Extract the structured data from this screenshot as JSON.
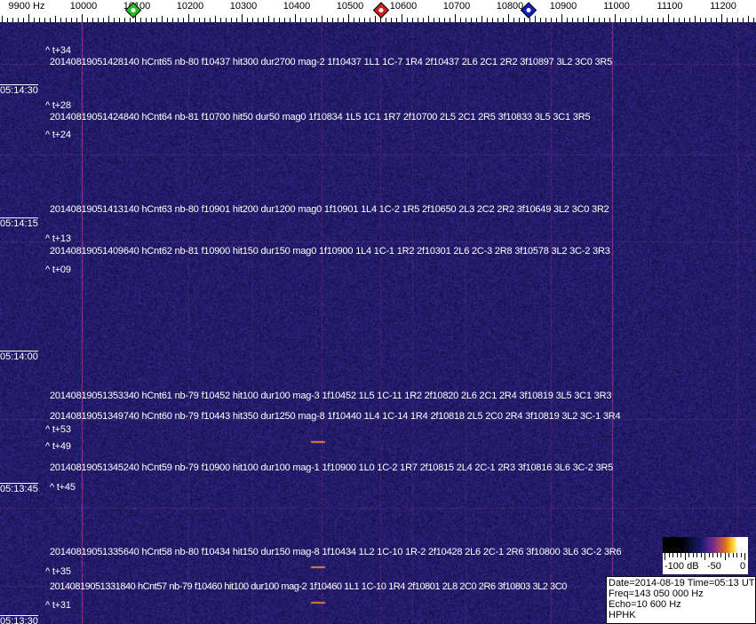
{
  "axis": {
    "unit_label": "9900 Hz",
    "labels": [
      "10000",
      "10100",
      "10200",
      "10300",
      "10400",
      "10500",
      "10600",
      "10700",
      "10800",
      "10900",
      "11000",
      "11100",
      "11200"
    ],
    "markers": [
      {
        "name": "green-marker",
        "freq_hz": 10097,
        "color": "#22c020"
      },
      {
        "name": "red-marker",
        "freq_hz": 10561,
        "color": "#d02020"
      },
      {
        "name": "blue-marker",
        "freq_hz": 10838,
        "color": "#1020c0"
      }
    ]
  },
  "colors": {
    "background": "#1c1968",
    "strong_line": "#b03080",
    "text": "#ffffff"
  },
  "times": [
    "05:14:30",
    "05:14:15",
    "05:14:00",
    "05:13:45",
    "05:13:30"
  ],
  "offsets": [
    "^ t+34",
    "^ t+28",
    "^ t+24",
    "^ t+13",
    "^ t+09",
    "^ t+53",
    "^ t+49",
    "^ t+45",
    "^ t+35",
    "^ t+31"
  ],
  "detections": [
    "20140819051428140 hCnt65 nb-80 f10437 hit300 dur2700 mag-2 1f10437 1L1 1C-7 1R4 2f10437 2L6 2C1 2R2 3f10897 3L2 3C0 3R5",
    "20140819051424840 hCnt64 nb-81 f10700 hit50 dur50 mag0 1f10834 1L5 1C1 1R7 2f10700 2L5 2C1 2R5 3f10833 3L5 3C1 3R5",
    "20140819051413140 hCnt63 nb-80 f10901 hit200 dur1200 mag0 1f10901 1L4 1C-2 1R5 2f10650 2L3 2C2 2R2 3f10649 3L2 3C0 3R2",
    "20140819051409640 hCnt62 nb-81 f10900 hit150 dur150 mag0 1f10900 1L4 1C-1 1R2 2f10301 2L6 2C-3 2R8 3f10578 3L2 3C-2 3R3",
    "20140819051353340 hCnt61 nb-79 f10452 hit100 dur100 mag-3 1f10452 1L5 1C-11 1R2 2f10820 2L6 2C1 2R4 3f10819 3L5 3C1 3R3",
    "20140819051349740 hCnt60 nb-79 f10443 hit350 dur1250 mag-8 1f10440 1L4 1C-14 1R4 2f10818 2L5 2C0 2R4 3f10819 3L2 3C-1 3R4",
    "20140819051345240 hCnt59 nb-79 f10900 hit100 dur100 mag-1 1f10900 1L0 1C-2 1R7 2f10815 2L4 2C-1 2R3 3f10816 3L6 3C-2 3R5",
    "20140819051335640 hCnt58 nb-80 f10434 hit150 dur150 mag-8 1f10434 1L2 1C-10 1R-2 2f10428 2L6 2C-1 2R6 3f10800 3L6 3C-2 3R6",
    "20140819051331840 hCnt57 nb-79 f10460 hit100 dur100 mag-2 1f10460 1L1 1C-10 1R4 2f10801 2L8 2C0 2R6 3f10803 3L2 3C0"
  ],
  "colorbar": {
    "labels": [
      "-100 dB",
      "-50",
      "0"
    ]
  },
  "info": {
    "date_time": "Date=2014-08-19 Time=05:13 UTC",
    "freq": "Freq=143 050 000 Hz",
    "echo": "Echo=10 600 Hz",
    "station": "HPHK"
  }
}
